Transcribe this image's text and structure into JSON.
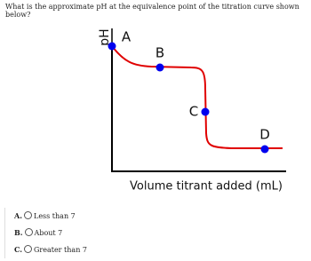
{
  "question": "What is the approximate pH at the equivalence point of the titration curve shown below?",
  "diagram": {
    "y_label": "pH",
    "x_label": "Volume titrant added (mL)",
    "points": [
      "A",
      "B",
      "C",
      "D"
    ]
  },
  "options": [
    {
      "letter": "A.",
      "text": "Less than 7"
    },
    {
      "letter": "B.",
      "text": "About 7"
    },
    {
      "letter": "C.",
      "text": "Greater than 7"
    }
  ]
}
